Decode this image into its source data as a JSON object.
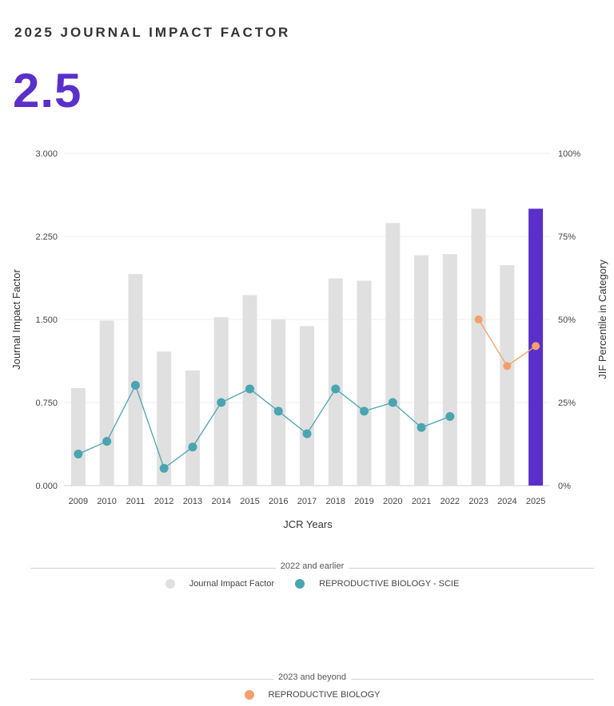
{
  "header": {
    "title": "2025 JOURNAL IMPACT FACTOR",
    "value": "2.5"
  },
  "colors": {
    "bar": "#e0e0e0",
    "bar_highlight": "#5b2fc9",
    "teal": "#4aa4b1",
    "orange": "#f4a06b",
    "value_text": "#5b2fc9"
  },
  "chart_data": {
    "type": "bar",
    "xlabel": "JCR Years",
    "ylabel": "Journal Impact Factor",
    "y2label": "JIF Percentile in Category",
    "ylim": [
      0,
      3
    ],
    "y2lim": [
      0,
      100
    ],
    "y_ticks": [
      "0.000",
      "0.750",
      "1.500",
      "2.250",
      "3.000"
    ],
    "y2_ticks": [
      "0%",
      "25%",
      "50%",
      "75%",
      "100%"
    ],
    "categories": [
      "2009",
      "2010",
      "2011",
      "2012",
      "2013",
      "2014",
      "2015",
      "2016",
      "2017",
      "2018",
      "2019",
      "2020",
      "2021",
      "2022",
      "2023",
      "2024",
      "2025"
    ],
    "series": [
      {
        "name": "Journal Impact Factor",
        "type": "bar",
        "values": [
          0.88,
          1.49,
          1.91,
          1.21,
          1.04,
          1.52,
          1.72,
          1.5,
          1.44,
          1.87,
          1.85,
          2.37,
          2.08,
          2.09,
          2.5,
          1.99,
          2.5
        ],
        "highlight_index": 16
      },
      {
        "name": "REPRODUCTIVE BIOLOGY - SCIE",
        "type": "line",
        "axis": "y2",
        "x": [
          "2009",
          "2010",
          "2011",
          "2012",
          "2013",
          "2014",
          "2015",
          "2016",
          "2017",
          "2018",
          "2019",
          "2020",
          "2021",
          "2022"
        ],
        "values": [
          9.5,
          13.3,
          30.2,
          5.2,
          11.6,
          25.0,
          29.1,
          22.4,
          15.6,
          29.1,
          22.4,
          25.0,
          17.5,
          20.8
        ]
      },
      {
        "name": "REPRODUCTIVE BIOLOGY",
        "type": "line",
        "axis": "y2",
        "x": [
          "2023",
          "2024",
          "2025"
        ],
        "values": [
          50.0,
          36.0,
          42.0
        ]
      }
    ]
  },
  "legend": {
    "group1_label": "2022 and earlier",
    "group1_items": [
      "Journal Impact Factor",
      "REPRODUCTIVE BIOLOGY - SCIE"
    ],
    "group2_label": "2023 and beyond",
    "group2_items": [
      "REPRODUCTIVE BIOLOGY"
    ]
  }
}
